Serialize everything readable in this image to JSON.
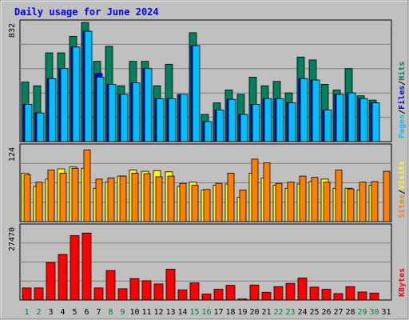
{
  "colors": {
    "background": "#C0C0C0",
    "title": "#0000FF",
    "hits": "#00805C",
    "files": "#0000FF",
    "pages": "#00C0FF",
    "visits": "#FFFF00",
    "sites": "#FF8000",
    "kbytes": "#FF0000",
    "weekend_day": "#008040"
  },
  "chart_data": {
    "type": "bar",
    "title": "Daily usage for June 2024",
    "categories": [
      "1",
      "2",
      "3",
      "4",
      "5",
      "6",
      "7",
      "8",
      "9",
      "10",
      "11",
      "12",
      "13",
      "14",
      "15",
      "16",
      "17",
      "18",
      "19",
      "20",
      "21",
      "22",
      "23",
      "24",
      "25",
      "26",
      "27",
      "28",
      "29",
      "30",
      "31"
    ],
    "weekend_days": [
      "1",
      "2",
      "8",
      "9",
      "15",
      "16",
      "22",
      "23",
      "29",
      "30"
    ],
    "panels": [
      {
        "name": "hits-files-pages",
        "scale_label": "832",
        "ylim": [
          0,
          832
        ],
        "legend": [
          "Pages",
          "/",
          "Files",
          "/",
          "Hits"
        ],
        "series": [
          {
            "name": "Hits",
            "color_key": "hits",
            "values": [
              416,
              390,
              620,
              620,
              735,
              832,
              560,
              665,
              390,
              560,
              560,
              390,
              540,
              330,
              760,
              190,
              270,
              360,
              330,
              450,
              390,
              420,
              340,
              590,
              570,
              400,
              360,
              510,
              320,
              290,
              0
            ]
          },
          {
            "name": "Files",
            "color_key": "files",
            "values": [
              260,
              200,
              440,
              510,
              660,
              770,
              475,
              400,
              330,
              410,
              510,
              300,
              300,
              330,
              670,
              140,
              220,
              295,
              190,
              260,
              300,
              300,
              270,
              440,
              430,
              220,
              330,
              340,
              300,
              270,
              0
            ]
          },
          {
            "name": "Pages",
            "color_key": "pages",
            "values": [
              260,
              200,
              440,
              510,
              660,
              770,
              450,
              400,
              330,
              410,
              510,
              300,
              300,
              330,
              670,
              140,
              220,
              295,
              190,
              260,
              300,
              300,
              270,
              440,
              430,
              220,
              330,
              340,
              300,
              270,
              0
            ]
          }
        ]
      },
      {
        "name": "visits-sites",
        "scale_label": "124",
        "ylim": [
          0,
          124
        ],
        "legend": [
          "Sites",
          "/",
          "Visits"
        ],
        "series": [
          {
            "name": "Visits",
            "color_key": "visits",
            "values": [
              80,
              58,
              70,
              87,
              90,
              88,
              55,
              65,
              75,
              85,
              83,
              84,
              82,
              58,
              65,
              52,
              60,
              62,
              40,
              80,
              72,
              60,
              55,
              62,
              66,
              70,
              55,
              55,
              52,
              60,
              0
            ]
          },
          {
            "name": "Sites",
            "color_key": "sites",
            "values": [
              77,
              65,
              85,
              80,
              88,
              118,
              70,
              72,
              75,
              80,
              79,
              74,
              75,
              63,
              60,
              53,
              63,
              80,
              52,
              103,
              97,
              63,
              65,
              75,
              73,
              65,
              85,
              54,
              65,
              66,
              83
            ]
          }
        ]
      },
      {
        "name": "kbytes",
        "scale_label": "27470",
        "ylim": [
          0,
          27470
        ],
        "legend": [
          "KBytes"
        ],
        "series": [
          {
            "name": "KBytes",
            "color_key": "kbytes",
            "values": [
              4500,
              4500,
              14000,
              17000,
              24000,
              25000,
              4500,
              11000,
              4200,
              8000,
              7200,
              6000,
              11500,
              3800,
              6400,
              2200,
              4000,
              5500,
              400,
              5600,
              2900,
              5000,
              6200,
              8200,
              4800,
              4000,
              2400,
              5000,
              3000,
              2600,
              0
            ]
          }
        ]
      }
    ]
  }
}
